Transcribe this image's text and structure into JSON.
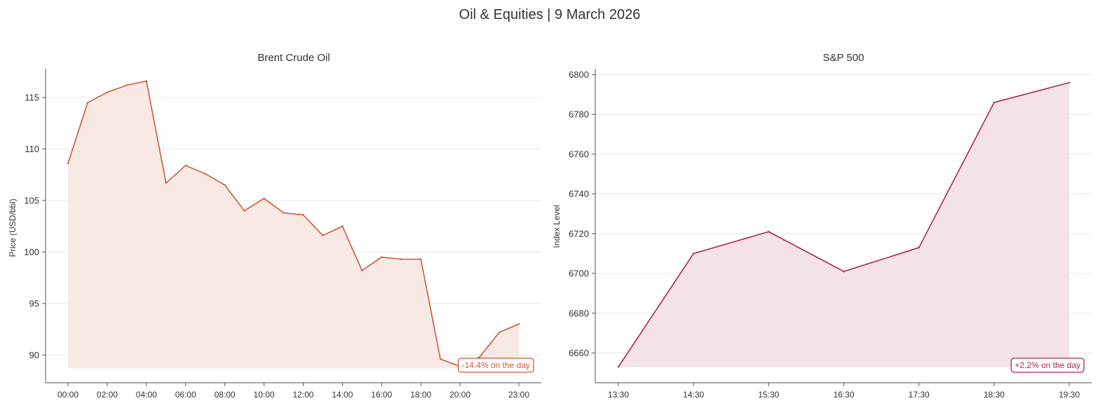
{
  "figure": {
    "title": "Oil & Equities  |  9 March 2026"
  },
  "chart_data": [
    {
      "type": "area",
      "title": "Brent Crude Oil",
      "xlabel": "",
      "ylabel": "Price (USD/bbl)",
      "ylim": [
        87.3,
        117.8
      ],
      "yticks": [
        90,
        95,
        100,
        105,
        110,
        115
      ],
      "fill_baseline": 88.7,
      "color": "#d0583a",
      "fill_color": "#f8e9e4",
      "grid": "horizontal",
      "x": [
        "00:00",
        "01:00",
        "02:00",
        "03:00",
        "04:00",
        "05:00",
        "06:00",
        "07:00",
        "08:00",
        "09:00",
        "10:00",
        "11:00",
        "12:00",
        "13:00",
        "14:00",
        "15:00",
        "16:00",
        "17:00",
        "18:00",
        "19:00",
        "20:00",
        "21:00",
        "22:00",
        "23:00"
      ],
      "xticks": [
        "00:00",
        "02:00",
        "04:00",
        "06:00",
        "08:00",
        "10:00",
        "12:00",
        "14:00",
        "16:00",
        "18:00",
        "20:00",
        "23:00"
      ],
      "values": [
        108.6,
        114.5,
        115.5,
        116.2,
        116.6,
        106.7,
        108.4,
        107.6,
        106.5,
        104.0,
        105.2,
        103.8,
        103.6,
        101.6,
        102.5,
        98.2,
        99.5,
        99.3,
        99.3,
        89.6,
        88.9,
        89.8,
        92.2,
        93.0
      ],
      "annotation": "-14.4% on the day"
    },
    {
      "type": "area",
      "title": "S&P 500",
      "xlabel": "",
      "ylabel": "Index Level",
      "ylim": [
        6645,
        6803
      ],
      "yticks": [
        6660,
        6680,
        6700,
        6720,
        6740,
        6760,
        6780,
        6800
      ],
      "fill_baseline": 6653,
      "color": "#ad2556",
      "fill_color": "#f3e2e8",
      "grid": "horizontal",
      "x": [
        "13:30",
        "14:30",
        "15:30",
        "16:30",
        "17:30",
        "18:30",
        "19:30"
      ],
      "xticks": [
        "13:30",
        "14:30",
        "15:30",
        "16:30",
        "17:30",
        "18:30",
        "19:30"
      ],
      "values": [
        6653,
        6710,
        6721,
        6701,
        6713,
        6786,
        6796
      ],
      "annotation": "+2.2% on the day"
    }
  ]
}
